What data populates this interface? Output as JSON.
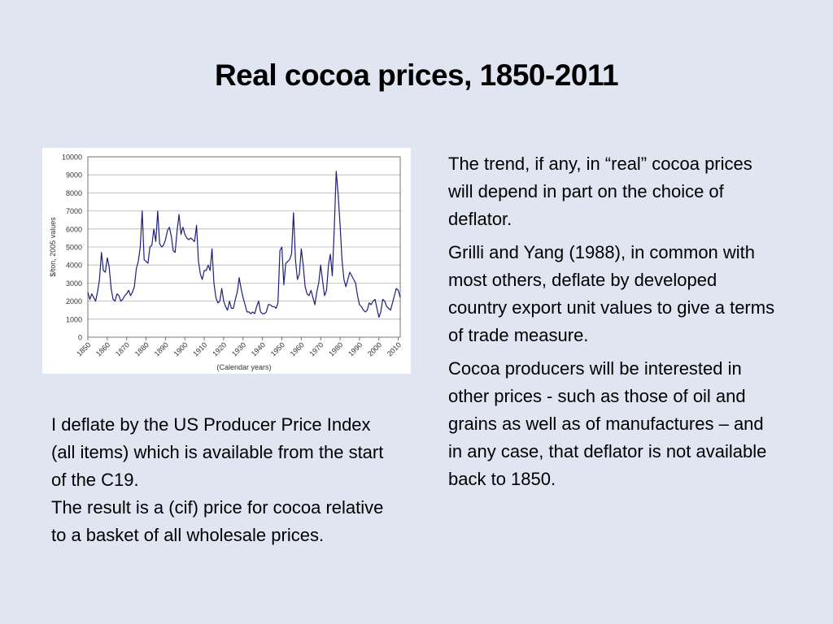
{
  "slide": {
    "title": "Real cocoa prices, 1850-2011",
    "left_note": [
      "I deflate by the US Producer Price Index (all items) which is available from the start of the C19.",
      "The result is a (cif) price for cocoa relative to a basket of all wholesale prices."
    ],
    "right_paragraphs": [
      "The trend, if any, in “real” cocoa prices will depend in part on the choice of deflator.",
      "Grilli and Yang (1988), in common with most others, deflate by developed country export unit values to give a terms of trade measure.",
      "Cocoa producers will be interested in other prices  - such as those of oil and grains as well as of manufactures – and in any case, that deflator is not available back to 1850."
    ]
  },
  "colors": {
    "background": "#dfe6f2",
    "line": "#1f1f7a",
    "grid": "#b0b0b0",
    "axis": "#555555"
  },
  "chart_data": {
    "type": "line",
    "title": "",
    "xlabel": "(Calendar years)",
    "ylabel": "$/ton, 2005 values",
    "xlim": [
      1850,
      2011
    ],
    "ylim": [
      0,
      10000
    ],
    "y_ticks": [
      0,
      1000,
      2000,
      3000,
      4000,
      5000,
      6000,
      7000,
      8000,
      9000,
      10000
    ],
    "y_tick_labels": [
      "0",
      "1000",
      "2000",
      "3000",
      "4000",
      "5000",
      "6000",
      "7000",
      "8000",
      "9000",
      "10000"
    ],
    "x_ticks": [
      1850,
      1860,
      1870,
      1880,
      1890,
      1900,
      1910,
      1920,
      1930,
      1940,
      1950,
      1960,
      1970,
      1980,
      1990,
      2000,
      2010
    ],
    "x_tick_labels": [
      "1850",
      "1860",
      "1870",
      "1880",
      "1890",
      "1900",
      "1910",
      "1920",
      "1930",
      "1940",
      "1950",
      "1960",
      "1970",
      "1980",
      "1990",
      "2000",
      "2010"
    ],
    "grid": true,
    "series": [
      {
        "name": "",
        "x": [
          1850,
          1851,
          1852,
          1853,
          1854,
          1855,
          1856,
          1857,
          1858,
          1859,
          1860,
          1861,
          1862,
          1863,
          1864,
          1865,
          1866,
          1867,
          1868,
          1869,
          1870,
          1871,
          1872,
          1873,
          1874,
          1875,
          1876,
          1877,
          1878,
          1879,
          1880,
          1881,
          1882,
          1883,
          1884,
          1885,
          1886,
          1887,
          1888,
          1889,
          1890,
          1891,
          1892,
          1893,
          1894,
          1895,
          1896,
          1897,
          1898,
          1899,
          1900,
          1901,
          1902,
          1903,
          1904,
          1905,
          1906,
          1907,
          1908,
          1909,
          1910,
          1911,
          1912,
          1913,
          1914,
          1915,
          1916,
          1917,
          1918,
          1919,
          1920,
          1921,
          1922,
          1923,
          1924,
          1925,
          1926,
          1927,
          1928,
          1929,
          1930,
          1931,
          1932,
          1933,
          1934,
          1935,
          1936,
          1937,
          1938,
          1939,
          1940,
          1941,
          1942,
          1943,
          1944,
          1945,
          1946,
          1947,
          1948,
          1949,
          1950,
          1951,
          1952,
          1953,
          1954,
          1955,
          1956,
          1957,
          1958,
          1959,
          1960,
          1961,
          1962,
          1963,
          1964,
          1965,
          1966,
          1967,
          1968,
          1969,
          1970,
          1971,
          1972,
          1973,
          1974,
          1975,
          1976,
          1977,
          1978,
          1979,
          1980,
          1981,
          1982,
          1983,
          1984,
          1985,
          1986,
          1987,
          1988,
          1989,
          1990,
          1991,
          1992,
          1993,
          1994,
          1995,
          1996,
          1997,
          1998,
          1999,
          2000,
          2001,
          2002,
          2003,
          2004,
          2005,
          2006,
          2007,
          2008,
          2009,
          2010,
          2011
        ],
        "values": [
          2500,
          2100,
          2400,
          2200,
          2000,
          2500,
          3200,
          4700,
          3700,
          3600,
          4400,
          3900,
          2700,
          2100,
          2000,
          2400,
          2300,
          2000,
          2100,
          2300,
          2400,
          2600,
          2300,
          2500,
          2800,
          3800,
          4200,
          5000,
          7000,
          4300,
          4200,
          4100,
          5000,
          5100,
          6000,
          5300,
          7000,
          5200,
          5000,
          5100,
          5400,
          5900,
          6100,
          5600,
          4800,
          4700,
          5900,
          6800,
          5700,
          6100,
          5700,
          5500,
          5400,
          5500,
          5400,
          5300,
          6200,
          4200,
          3500,
          3200,
          3700,
          3700,
          4000,
          3700,
          4900,
          3000,
          2200,
          1900,
          2000,
          2700,
          2000,
          1700,
          1500,
          2000,
          1600,
          1600,
          2100,
          2500,
          3300,
          2700,
          2200,
          1800,
          1400,
          1400,
          1300,
          1400,
          1300,
          1700,
          2000,
          1400,
          1300,
          1300,
          1400,
          1800,
          1800,
          1700,
          1700,
          1600,
          1900,
          4800,
          5000,
          2900,
          4100,
          4200,
          4300,
          4600,
          6900,
          4300,
          3200,
          3500,
          4900,
          4000,
          2800,
          2400,
          2300,
          2600,
          2200,
          1800,
          2500,
          3000,
          4000,
          3100,
          2300,
          2600,
          4000,
          4600,
          3400,
          6000,
          9200,
          7900,
          6200,
          4300,
          3200,
          2800,
          3200,
          3600,
          3400,
          3200,
          3000,
          2300,
          1800,
          1700,
          1500,
          1400,
          1500,
          1900,
          1800,
          2000,
          2100,
          1600,
          1100,
          1400,
          2100,
          2000,
          1700,
          1600,
          1500,
          1900,
          2300,
          2700,
          2600,
          2200
        ]
      }
    ]
  }
}
